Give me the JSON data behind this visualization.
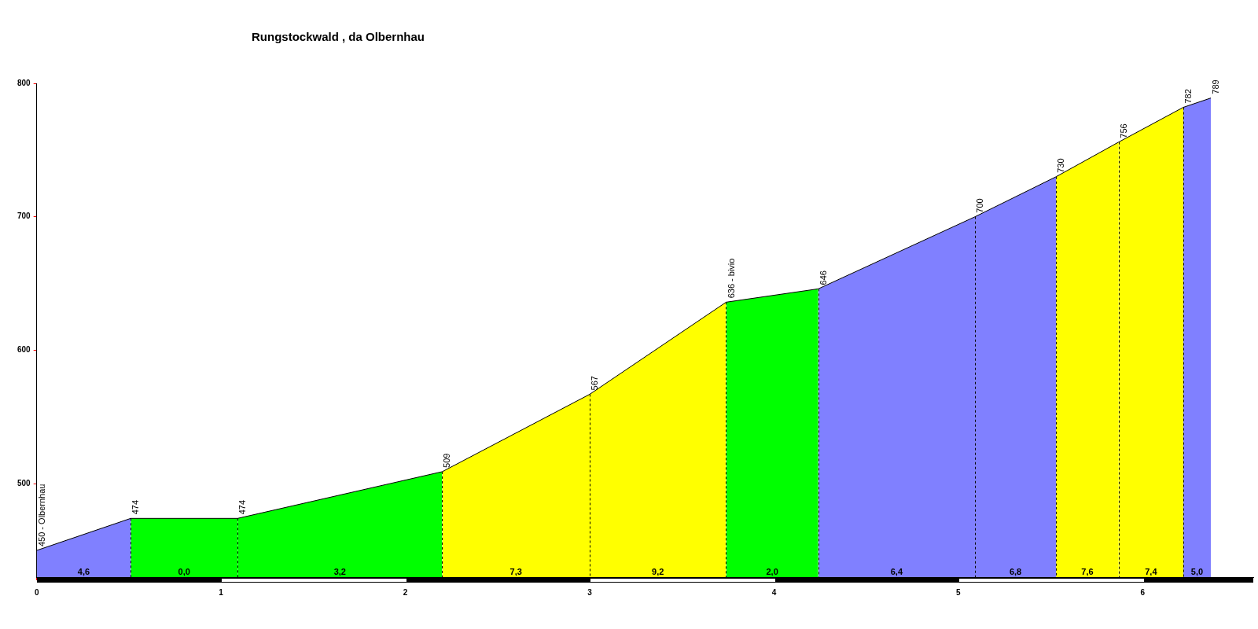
{
  "chart_data": {
    "type": "area",
    "title": "Rungstockwald , da Olbernhau",
    "xlim": [
      0,
      6.6
    ],
    "xticks": [
      0,
      1,
      2,
      3,
      4,
      5,
      6
    ],
    "ylim": [
      430,
      800
    ],
    "yticks": [
      500,
      600,
      700,
      800
    ],
    "grid": false,
    "legend": false,
    "series": [
      {
        "color": "#8080ff",
        "x": [
          0,
          0.51
        ],
        "values": [
          450,
          474
        ]
      },
      {
        "color": "#00ff00",
        "x": [
          0.51,
          1.09
        ],
        "values": [
          474,
          474
        ]
      },
      {
        "color": "#00ff00",
        "x": [
          1.09,
          2.2
        ],
        "values": [
          474,
          509
        ]
      },
      {
        "color": "#ffff00",
        "x": [
          2.2,
          3.0
        ],
        "values": [
          509,
          567
        ]
      },
      {
        "color": "#ffff00",
        "x": [
          3.0,
          3.74
        ],
        "values": [
          567,
          636
        ]
      },
      {
        "color": "#00ff00",
        "x": [
          3.74,
          4.24
        ],
        "values": [
          636,
          646
        ]
      },
      {
        "color": "#8080ff",
        "x": [
          4.24,
          5.09
        ],
        "values": [
          646,
          700
        ]
      },
      {
        "color": "#8080ff",
        "x": [
          5.09,
          5.53
        ],
        "values": [
          700,
          730
        ]
      },
      {
        "color": "#ffff00",
        "x": [
          5.53,
          5.87
        ],
        "values": [
          730,
          756
        ]
      },
      {
        "color": "#ffff00",
        "x": [
          5.87,
          6.22
        ],
        "values": [
          756,
          782
        ]
      },
      {
        "color": "#8080ff",
        "x": [
          6.22,
          6.37
        ],
        "values": [
          782,
          789
        ]
      }
    ],
    "annotations": [
      {
        "text": "450 - Olbernhau",
        "x": 0,
        "y": 450
      },
      {
        "text": "474",
        "x": 0.51,
        "y": 474
      },
      {
        "text": "474",
        "x": 1.09,
        "y": 474
      },
      {
        "text": "509",
        "x": 2.2,
        "y": 509
      },
      {
        "text": "567",
        "x": 3.0,
        "y": 567
      },
      {
        "text": "636 - bivio",
        "x": 3.74,
        "y": 636
      },
      {
        "text": "646",
        "x": 4.24,
        "y": 646
      },
      {
        "text": "700",
        "x": 5.09,
        "y": 700
      },
      {
        "text": "730",
        "x": 5.53,
        "y": 730
      },
      {
        "text": "756",
        "x": 5.87,
        "y": 756
      },
      {
        "text": "782",
        "x": 6.22,
        "y": 782
      },
      {
        "text": "789",
        "x": 6.37,
        "y": 789
      },
      "4,6",
      "0,0",
      "3,2",
      "7,3",
      "9,2",
      "2,0",
      "6,4",
      "6,8",
      "7,6",
      "7,4",
      "5,0"
    ]
  }
}
